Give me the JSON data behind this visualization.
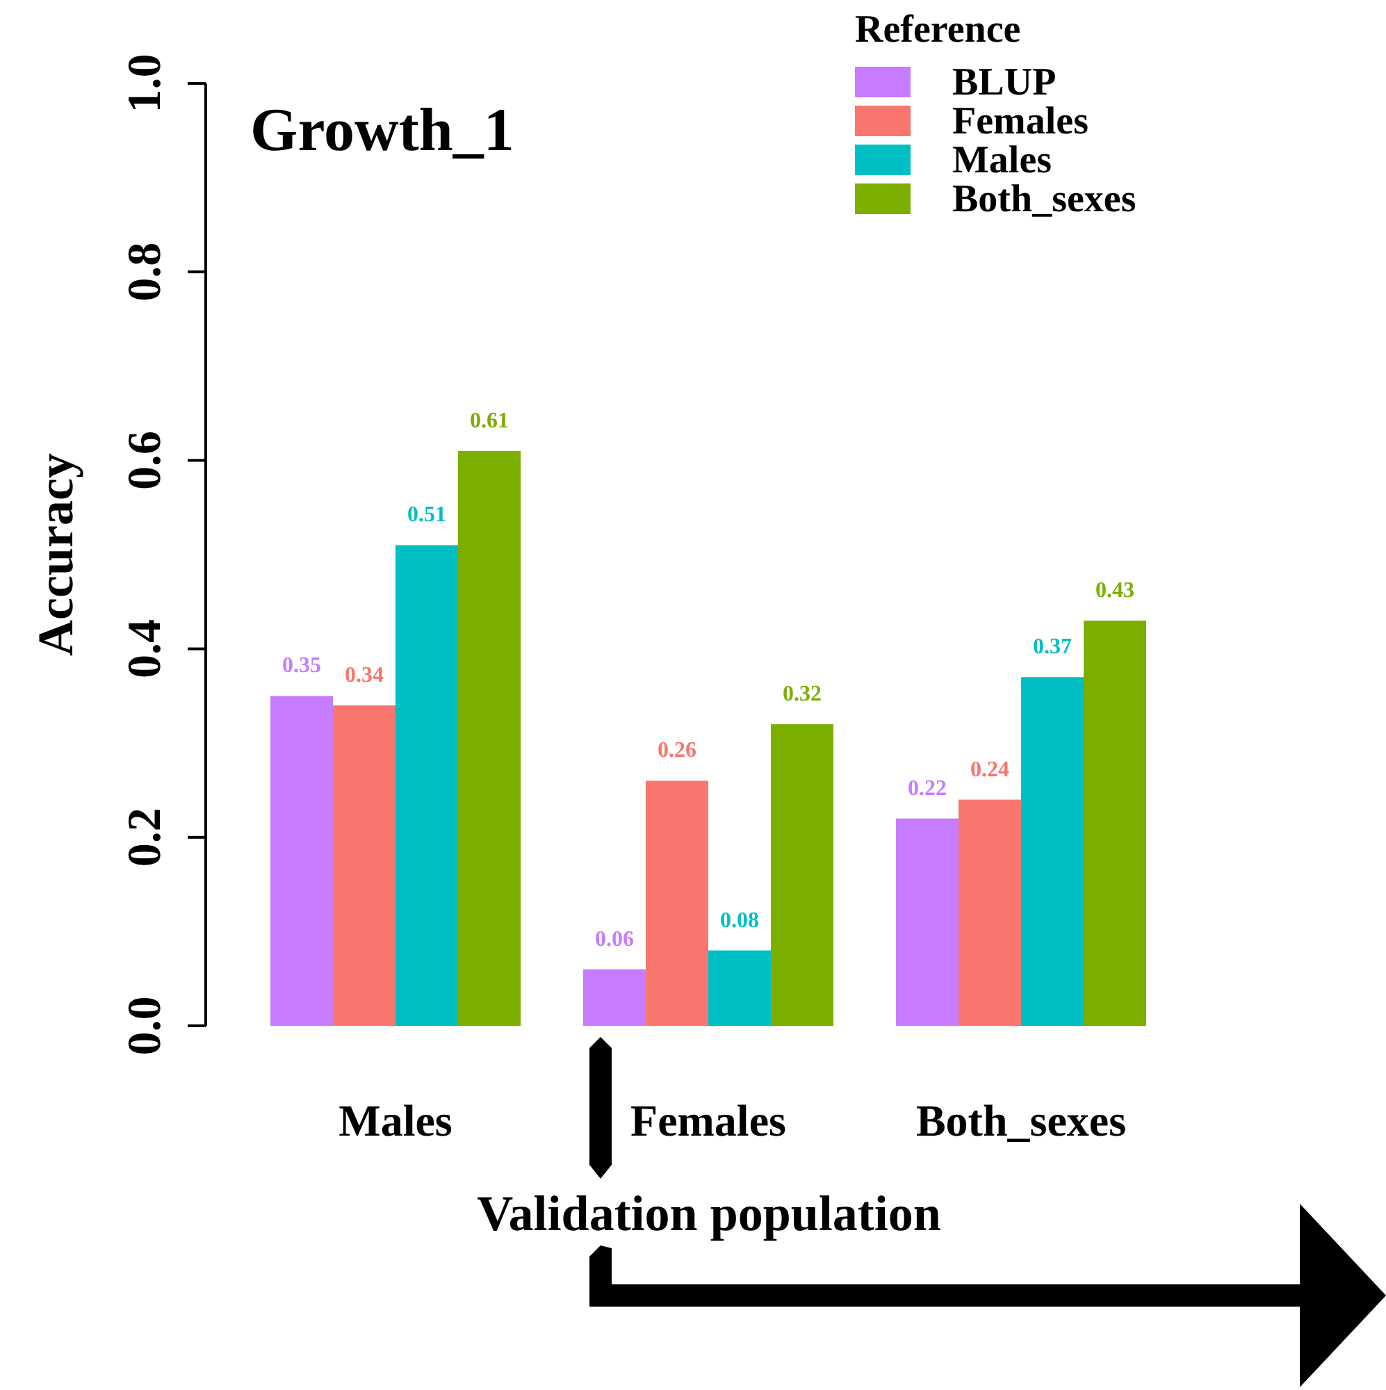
{
  "chart_data": {
    "type": "bar",
    "title": "Growth_1",
    "xlabel": "Validation population",
    "ylabel": "Accuracy",
    "legend_title": "Reference",
    "categories": [
      "Males",
      "Females",
      "Both_sexes"
    ],
    "series": [
      {
        "name": "BLUP",
        "color": "#c77cff",
        "values": [
          0.35,
          0.06,
          0.22
        ]
      },
      {
        "name": "Females",
        "color": "#f8766d",
        "values": [
          0.34,
          0.26,
          0.24
        ]
      },
      {
        "name": "Males",
        "color": "#00bfc4",
        "values": [
          0.51,
          0.08,
          0.37
        ]
      },
      {
        "name": "Both_sexes",
        "color": "#7cae00",
        "values": [
          0.61,
          0.32,
          0.43
        ]
      }
    ],
    "ylim": [
      0,
      1
    ],
    "yticks": [
      {
        "value": 0,
        "label": "0.0"
      },
      0.2,
      0.4,
      0.6,
      0.8,
      {
        "value": 1,
        "label": "1.0"
      }
    ],
    "data_labels": true,
    "legend": "top right",
    "grid": false
  }
}
